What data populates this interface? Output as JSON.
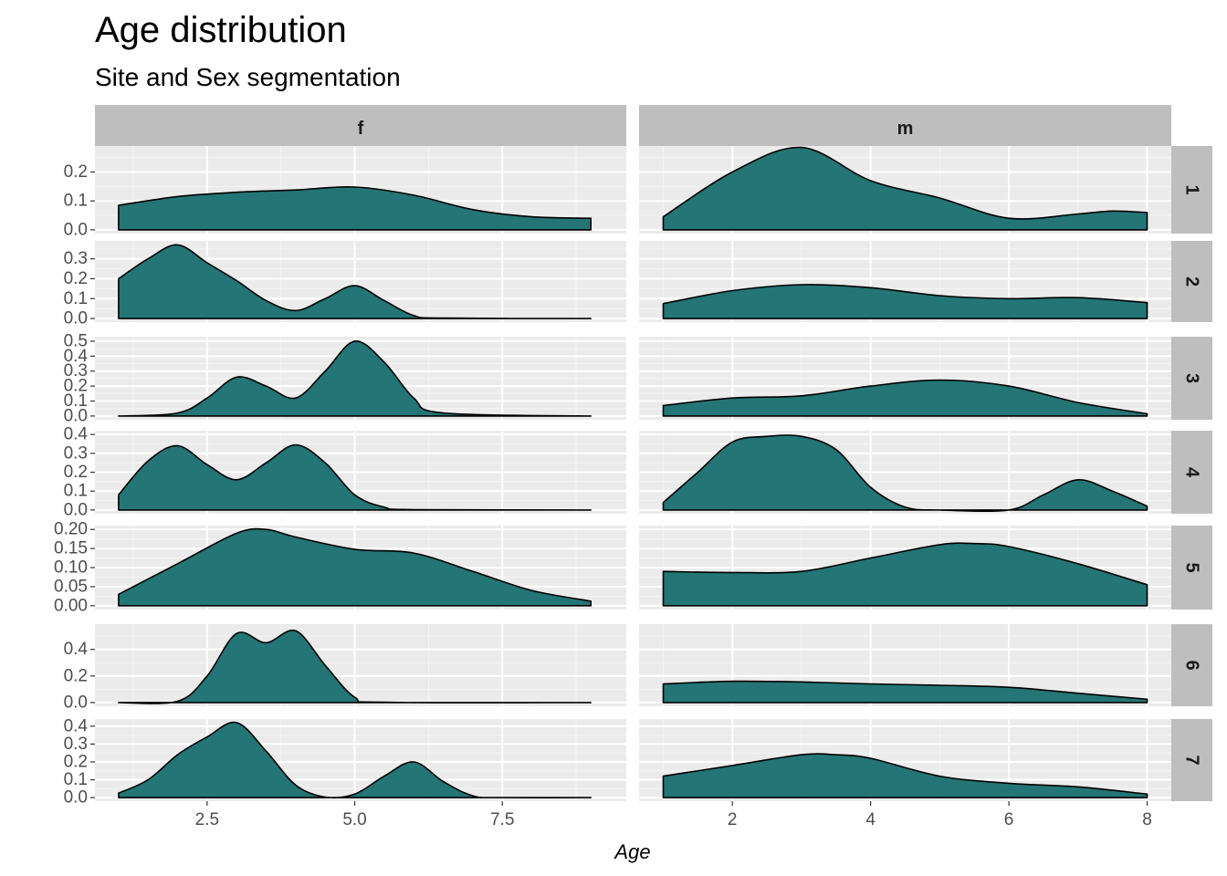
{
  "chart_data": {
    "type": "area",
    "subtype": "faceted-density",
    "title": "Age distribution",
    "subtitle": "Site and Sex segmentation",
    "xlabel": "Age",
    "ylabel": "",
    "column_facet_labels": [
      "f",
      "m"
    ],
    "row_facet_labels": [
      "1",
      "2",
      "3",
      "4",
      "5",
      "6",
      "7"
    ],
    "fill_color": "#1b6f6f",
    "outline_color": "#000000",
    "panel_background": "#ebebeb",
    "strip_background": "#bebebe",
    "columns": [
      {
        "label": "f",
        "xlim": [
          0.6,
          9.6
        ],
        "x_ticks": [
          2.5,
          5.0,
          7.5
        ],
        "x_tick_labels": [
          "2.5",
          "5.0",
          "7.5"
        ]
      },
      {
        "label": "m",
        "xlim": [
          0.65,
          8.35
        ],
        "x_ticks": [
          2,
          4,
          6,
          8
        ],
        "x_tick_labels": [
          "2",
          "4",
          "6",
          "8"
        ]
      }
    ],
    "rows": [
      {
        "label": "1",
        "ylim": [
          -0.013,
          0.29
        ],
        "y_ticks": [
          0.0,
          0.1,
          0.2
        ],
        "y_tick_labels": [
          "0.0",
          "0.1",
          "0.2"
        ]
      },
      {
        "label": "2",
        "ylim": [
          -0.018,
          0.39
        ],
        "y_ticks": [
          0.0,
          0.1,
          0.2,
          0.3
        ],
        "y_tick_labels": [
          "0.0",
          "0.1",
          "0.2",
          "0.3"
        ]
      },
      {
        "label": "3",
        "ylim": [
          -0.025,
          0.53
        ],
        "y_ticks": [
          0.0,
          0.1,
          0.2,
          0.3,
          0.4,
          0.5
        ],
        "y_tick_labels": [
          "0.0",
          "0.1",
          "0.2",
          "0.3",
          "0.4",
          "0.5"
        ]
      },
      {
        "label": "4",
        "ylim": [
          -0.02,
          0.42
        ],
        "y_ticks": [
          0.0,
          0.1,
          0.2,
          0.3,
          0.4
        ],
        "y_tick_labels": [
          "0.0",
          "0.1",
          "0.2",
          "0.3",
          "0.4"
        ]
      },
      {
        "label": "5",
        "ylim": [
          -0.01,
          0.21
        ],
        "y_ticks": [
          0.0,
          0.05,
          0.1,
          0.15,
          0.2
        ],
        "y_tick_labels": [
          "0.00",
          "0.05",
          "0.10",
          "0.15",
          "0.20"
        ]
      },
      {
        "label": "6",
        "ylim": [
          -0.028,
          0.59
        ],
        "y_ticks": [
          0.0,
          0.2,
          0.4
        ],
        "y_tick_labels": [
          "0.0",
          "0.2",
          "0.4"
        ]
      },
      {
        "label": "7",
        "ylim": [
          -0.02,
          0.44
        ],
        "y_ticks": [
          0.0,
          0.1,
          0.2,
          0.3,
          0.4
        ],
        "y_tick_labels": [
          "0.0",
          "0.1",
          "0.2",
          "0.3",
          "0.4"
        ]
      }
    ],
    "panels": [
      {
        "row": "1",
        "col": "f",
        "x": [
          1.0,
          2.0,
          3.0,
          4.0,
          5.0,
          6.0,
          7.0,
          8.0,
          9.0
        ],
        "y": [
          0.085,
          0.115,
          0.13,
          0.138,
          0.148,
          0.12,
          0.07,
          0.045,
          0.04
        ]
      },
      {
        "row": "1",
        "col": "m",
        "x": [
          1.0,
          2.0,
          3.0,
          4.0,
          5.0,
          6.0,
          7.0,
          7.5,
          8.0
        ],
        "y": [
          0.045,
          0.2,
          0.285,
          0.17,
          0.11,
          0.04,
          0.055,
          0.065,
          0.06
        ]
      },
      {
        "row": "2",
        "col": "f",
        "x": [
          1.0,
          1.5,
          2.0,
          2.5,
          3.0,
          3.5,
          4.0,
          4.5,
          5.0,
          5.5,
          6.0,
          6.5,
          9.0
        ],
        "y": [
          0.2,
          0.3,
          0.37,
          0.28,
          0.19,
          0.09,
          0.04,
          0.1,
          0.165,
          0.09,
          0.015,
          0.002,
          0.0
        ]
      },
      {
        "row": "2",
        "col": "m",
        "x": [
          1.0,
          2.0,
          3.0,
          4.0,
          5.0,
          6.0,
          7.0,
          8.0
        ],
        "y": [
          0.075,
          0.14,
          0.17,
          0.155,
          0.115,
          0.1,
          0.105,
          0.08
        ]
      },
      {
        "row": "3",
        "col": "f",
        "x": [
          1.0,
          2.0,
          2.5,
          3.0,
          3.5,
          4.0,
          4.5,
          5.0,
          5.5,
          6.0,
          6.5,
          9.0
        ],
        "y": [
          0.0,
          0.02,
          0.12,
          0.26,
          0.2,
          0.12,
          0.3,
          0.5,
          0.36,
          0.12,
          0.02,
          0.0
        ]
      },
      {
        "row": "3",
        "col": "m",
        "x": [
          1.0,
          2.0,
          3.0,
          4.0,
          5.0,
          6.0,
          7.0,
          8.0
        ],
        "y": [
          0.07,
          0.12,
          0.135,
          0.2,
          0.24,
          0.2,
          0.09,
          0.015
        ]
      },
      {
        "row": "4",
        "col": "f",
        "x": [
          1.0,
          1.5,
          2.0,
          2.5,
          3.0,
          3.5,
          4.0,
          4.5,
          5.0,
          5.5,
          6.0,
          9.0
        ],
        "y": [
          0.08,
          0.26,
          0.34,
          0.24,
          0.16,
          0.25,
          0.345,
          0.25,
          0.08,
          0.015,
          0.002,
          0.0
        ]
      },
      {
        "row": "4",
        "col": "m",
        "x": [
          1.0,
          1.5,
          2.0,
          2.5,
          3.0,
          3.5,
          4.0,
          4.5,
          5.0,
          6.0,
          6.5,
          7.0,
          7.5,
          8.0
        ],
        "y": [
          0.04,
          0.2,
          0.36,
          0.39,
          0.39,
          0.32,
          0.12,
          0.015,
          0.0,
          0.0,
          0.08,
          0.16,
          0.1,
          0.02
        ]
      },
      {
        "row": "5",
        "col": "f",
        "x": [
          1.0,
          2.0,
          3.0,
          3.5,
          4.0,
          5.0,
          6.0,
          7.0,
          8.0,
          9.0
        ],
        "y": [
          0.03,
          0.11,
          0.19,
          0.2,
          0.18,
          0.148,
          0.138,
          0.09,
          0.04,
          0.012
        ]
      },
      {
        "row": "5",
        "col": "m",
        "x": [
          1.0,
          2.0,
          3.0,
          4.0,
          5.0,
          5.5,
          6.0,
          7.0,
          8.0
        ],
        "y": [
          0.09,
          0.087,
          0.09,
          0.125,
          0.16,
          0.163,
          0.155,
          0.11,
          0.055
        ]
      },
      {
        "row": "6",
        "col": "f",
        "x": [
          1.0,
          2.0,
          2.5,
          3.0,
          3.5,
          4.0,
          4.5,
          5.0,
          5.5,
          9.0
        ],
        "y": [
          0.0,
          0.01,
          0.2,
          0.52,
          0.45,
          0.54,
          0.28,
          0.04,
          0.002,
          0.0
        ]
      },
      {
        "row": "6",
        "col": "m",
        "x": [
          1.0,
          2.0,
          3.0,
          4.0,
          5.0,
          6.0,
          7.0,
          8.0
        ],
        "y": [
          0.14,
          0.16,
          0.155,
          0.14,
          0.13,
          0.115,
          0.07,
          0.025
        ]
      },
      {
        "row": "7",
        "col": "f",
        "x": [
          1.0,
          1.5,
          2.0,
          2.5,
          3.0,
          3.5,
          4.0,
          4.5,
          5.0,
          5.5,
          6.0,
          6.5,
          7.0,
          7.5,
          9.0
        ],
        "y": [
          0.025,
          0.1,
          0.24,
          0.34,
          0.42,
          0.26,
          0.07,
          0.003,
          0.02,
          0.12,
          0.2,
          0.09,
          0.01,
          0.0,
          0.0
        ]
      },
      {
        "row": "7",
        "col": "m",
        "x": [
          1.0,
          2.0,
          3.0,
          3.5,
          4.0,
          5.0,
          6.0,
          7.0,
          8.0
        ],
        "y": [
          0.12,
          0.18,
          0.24,
          0.24,
          0.22,
          0.12,
          0.08,
          0.06,
          0.02
        ]
      }
    ]
  }
}
